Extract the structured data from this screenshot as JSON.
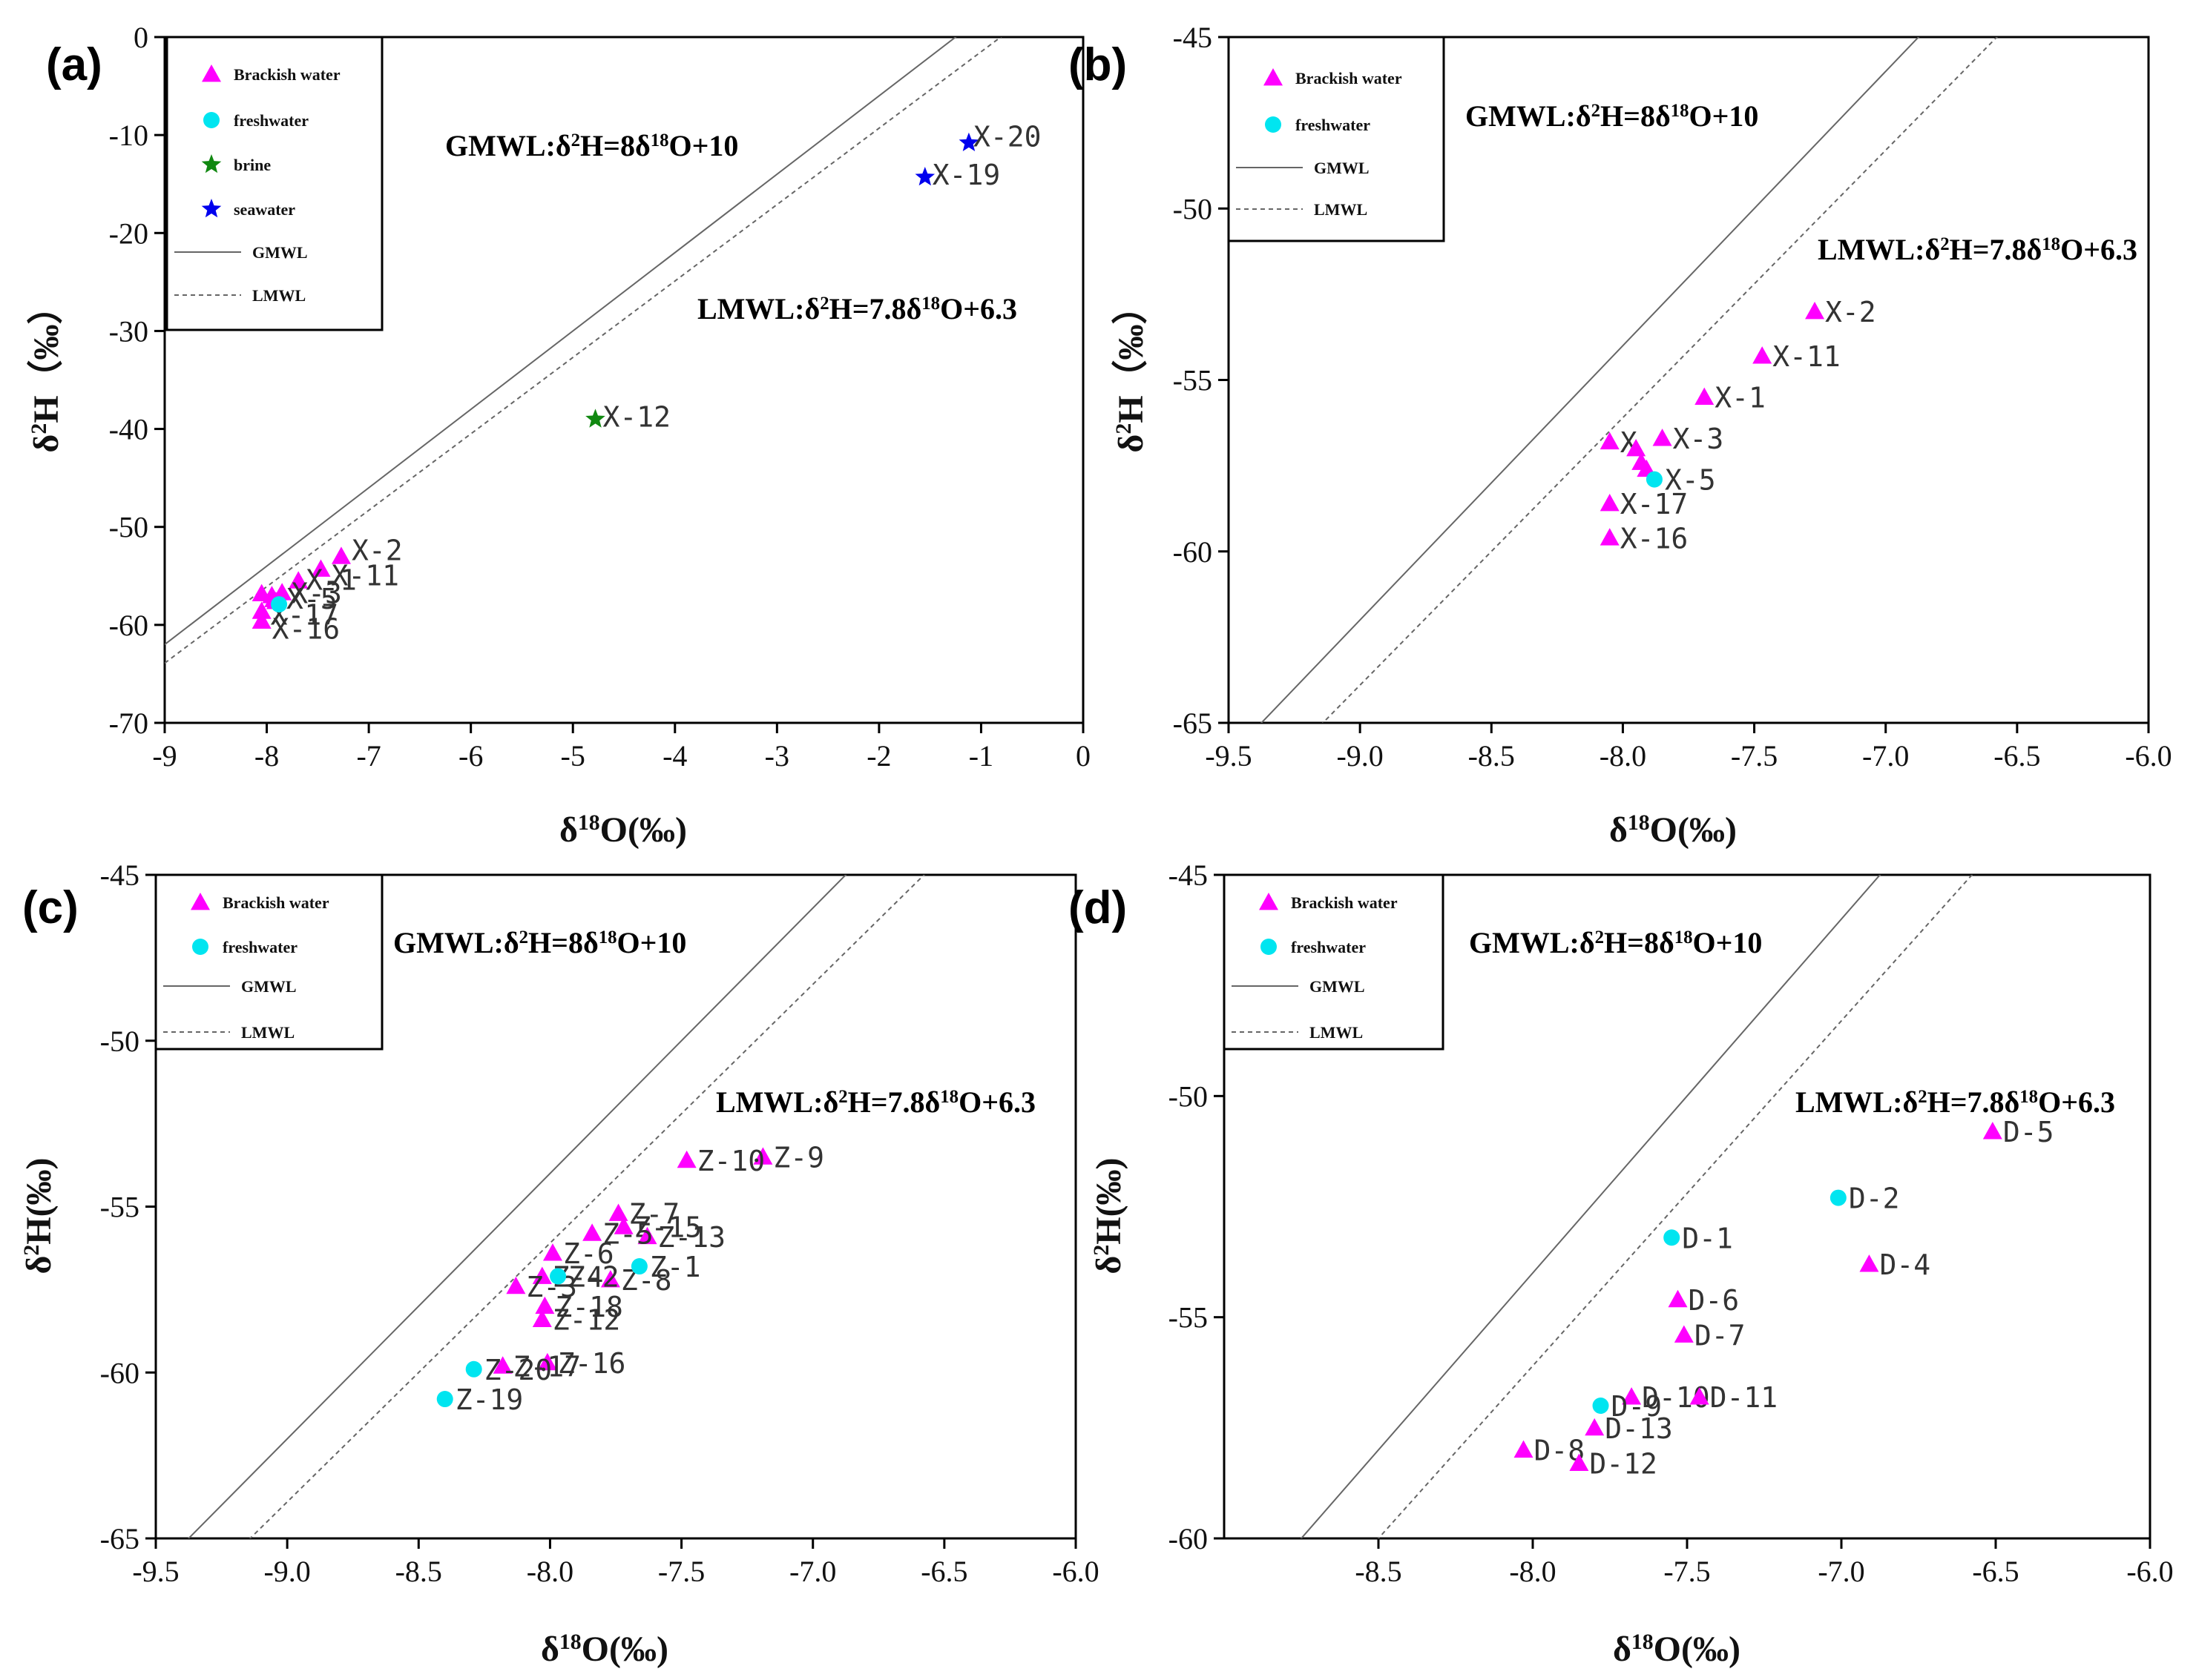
{
  "figure": {
    "colors": {
      "brackish": "#ff00ff",
      "freshwater": "#00e5f0",
      "brine": "#118811",
      "seawater": "#0000ee",
      "line": "#666666",
      "axis": "#000000"
    }
  },
  "chart_data": [
    {
      "panel": "(a)",
      "type": "scatter",
      "xlabel": "δ18O(‰)",
      "ylabel": "δ2H（‰）",
      "xlim": [
        -9,
        0
      ],
      "ylim": [
        -70,
        0
      ],
      "xticks": [
        -9,
        -8,
        -7,
        -6,
        -5,
        -4,
        -3,
        -2,
        -1,
        0
      ],
      "yticks": [
        -70,
        -60,
        -50,
        -40,
        -30,
        -20,
        -10,
        0
      ],
      "legend": [
        "Brackish water",
        "freshwater",
        "brine",
        "seawater",
        "GMWL",
        "LMWL"
      ],
      "annotations": [
        "GMWL:δ2H=8δ18O+10",
        "LMWL:δ2H=7.8δ18O+6.3"
      ],
      "lines": [
        {
          "name": "GMWL",
          "slope": 8,
          "intercept": 10,
          "style": "solid"
        },
        {
          "name": "LMWL",
          "slope": 7.8,
          "intercept": 6.3,
          "style": "dashed"
        }
      ],
      "series": [
        {
          "name": "Brackish water",
          "marker": "triangle",
          "points": [
            {
              "label": "X-2",
              "x": -7.27,
              "y": -53.0
            },
            {
              "label": "X-11",
              "x": -7.47,
              "y": -54.3
            },
            {
              "label": "X-1",
              "x": -7.69,
              "y": -55.5
            },
            {
              "label": "X-3",
              "x": -7.85,
              "y": -56.7
            },
            {
              "label": "",
              "x": -8.05,
              "y": -56.8
            },
            {
              "label": "",
              "x": -7.95,
              "y": -57.0
            },
            {
              "label": "",
              "x": -7.93,
              "y": -57.4
            },
            {
              "label": "",
              "x": -7.91,
              "y": -57.6
            },
            {
              "label": "X-17",
              "x": -8.05,
              "y": -58.6
            },
            {
              "label": "X-16",
              "x": -8.05,
              "y": -59.6
            }
          ]
        },
        {
          "name": "freshwater",
          "marker": "circle",
          "points": [
            {
              "label": "X-5",
              "x": -7.88,
              "y": -57.9
            }
          ]
        },
        {
          "name": "brine",
          "marker": "star",
          "points": [
            {
              "label": "X-12",
              "x": -4.78,
              "y": -39.0
            }
          ]
        },
        {
          "name": "seawater",
          "marker": "star",
          "points": [
            {
              "label": "X-19",
              "x": -1.55,
              "y": -14.3
            },
            {
              "label": "X-20",
              "x": -1.12,
              "y": -10.8
            }
          ]
        }
      ]
    },
    {
      "panel": "(b)",
      "type": "scatter",
      "xlabel": "δ18O(‰)",
      "ylabel": "δ2H（‰）",
      "xlim": [
        -9.5,
        -6.0
      ],
      "ylim": [
        -65,
        -45
      ],
      "xticks": [
        -9.5,
        -9.0,
        -8.5,
        -8.0,
        -7.5,
        -7.0,
        -6.5,
        -6.0
      ],
      "yticks": [
        -65,
        -60,
        -55,
        -50,
        -45
      ],
      "legend": [
        "Brackish water",
        "freshwater",
        "GMWL",
        "LMWL"
      ],
      "annotations": [
        "GMWL:δ2H=8δ18O+10",
        "LMWL:δ2H=7.8δ18O+6.3"
      ],
      "lines": [
        {
          "name": "GMWL",
          "slope": 8,
          "intercept": 10,
          "style": "solid"
        },
        {
          "name": "LMWL",
          "slope": 7.8,
          "intercept": 6.3,
          "style": "dashed"
        }
      ],
      "series": [
        {
          "name": "Brackish water",
          "marker": "triangle",
          "points": [
            {
              "label": "X-2",
              "x": -7.27,
              "y": -53.0
            },
            {
              "label": "X-11",
              "x": -7.47,
              "y": -54.3
            },
            {
              "label": "X-1",
              "x": -7.69,
              "y": -55.5
            },
            {
              "label": "X-3",
              "x": -7.85,
              "y": -56.7
            },
            {
              "label": "X",
              "x": -8.05,
              "y": -56.8
            },
            {
              "label": "",
              "x": -7.95,
              "y": -57.0
            },
            {
              "label": "",
              "x": -7.93,
              "y": -57.4
            },
            {
              "label": "",
              "x": -7.91,
              "y": -57.6
            },
            {
              "label": "X-17",
              "x": -8.05,
              "y": -58.6
            },
            {
              "label": "X-16",
              "x": -8.05,
              "y": -59.6
            }
          ]
        },
        {
          "name": "freshwater",
          "marker": "circle",
          "points": [
            {
              "label": "X-5",
              "x": -7.88,
              "y": -57.9
            }
          ]
        }
      ]
    },
    {
      "panel": "(c)",
      "type": "scatter",
      "xlabel": "δ18O(‰)",
      "ylabel": "δ2H(‰)",
      "xlim": [
        -9.5,
        -6.0
      ],
      "ylim": [
        -65,
        -45
      ],
      "xticks": [
        -9.5,
        -9.0,
        -8.5,
        -8.0,
        -7.5,
        -7.0,
        -6.5,
        -6.0
      ],
      "yticks": [
        -65,
        -60,
        -55,
        -50,
        -45
      ],
      "legend": [
        "Brackish water",
        "freshwater",
        "GMWL",
        "LMWL"
      ],
      "annotations": [
        "GMWL:δ2H=8δ18O+10",
        "LMWL:δ2H=7.8δ18O+6.3"
      ],
      "lines": [
        {
          "name": "GMWL",
          "slope": 8,
          "intercept": 10,
          "style": "solid"
        },
        {
          "name": "LMWL",
          "slope": 7.8,
          "intercept": 6.3,
          "style": "dashed"
        }
      ],
      "series": [
        {
          "name": "Brackish water",
          "marker": "triangle",
          "points": [
            {
              "label": "Z-9",
              "x": -7.19,
              "y": -53.5
            },
            {
              "label": "Z-10",
              "x": -7.48,
              "y": -53.6
            },
            {
              "label": "Z-7",
              "x": -7.74,
              "y": -55.2
            },
            {
              "label": "Z-15",
              "x": -7.72,
              "y": -55.6
            },
            {
              "label": "Z-13",
              "x": -7.63,
              "y": -55.9
            },
            {
              "label": "Z-5",
              "x": -7.84,
              "y": -55.8
            },
            {
              "label": "Z-6",
              "x": -7.99,
              "y": -56.4
            },
            {
              "label": "Z-8",
              "x": -7.77,
              "y": -57.2
            },
            {
              "label": "Z-4",
              "x": -8.03,
              "y": -57.1
            },
            {
              "label": "Z-3",
              "x": -8.13,
              "y": -57.4
            },
            {
              "label": "Z-18",
              "x": -8.02,
              "y": -58.0
            },
            {
              "label": "Z-12",
              "x": -8.03,
              "y": -58.4
            },
            {
              "label": "Z-16",
              "x": -8.01,
              "y": -59.7
            },
            {
              "label": "Z-17",
              "x": -8.18,
              "y": -59.8
            }
          ]
        },
        {
          "name": "freshwater",
          "marker": "circle",
          "points": [
            {
              "label": "Z-1",
              "x": -7.66,
              "y": -56.8
            },
            {
              "label": "Z-2",
              "x": -7.97,
              "y": -57.1
            },
            {
              "label": "Z-20",
              "x": -8.29,
              "y": -59.9
            },
            {
              "label": "Z-19",
              "x": -8.4,
              "y": -60.8
            }
          ]
        }
      ]
    },
    {
      "panel": "(d)",
      "type": "scatter",
      "xlabel": "δ18O(‰)",
      "ylabel": "δ2H(‰)",
      "xlim": [
        -9.0,
        -6.0
      ],
      "ylim": [
        -60,
        -45
      ],
      "xticks": [
        -8.5,
        -8.0,
        -7.5,
        -7.0,
        -6.5,
        -6.0
      ],
      "yticks": [
        -60,
        -55,
        -50,
        -45
      ],
      "legend": [
        "Brackish water",
        "freshwater",
        "GMWL",
        "LMWL"
      ],
      "annotations": [
        "GMWL:δ2H=8δ18O+10",
        "LMWL:δ2H=7.8δ18O+6.3"
      ],
      "lines": [
        {
          "name": "GMWL",
          "slope": 8,
          "intercept": 10,
          "style": "solid"
        },
        {
          "name": "LMWL",
          "slope": 7.8,
          "intercept": 6.3,
          "style": "dashed"
        }
      ],
      "series": [
        {
          "name": "Brackish water",
          "marker": "triangle",
          "points": [
            {
              "label": "D-5",
              "x": -6.51,
              "y": -50.8
            },
            {
              "label": "D-4",
              "x": -6.91,
              "y": -53.8
            },
            {
              "label": "D-6",
              "x": -7.53,
              "y": -54.6
            },
            {
              "label": "D-7",
              "x": -7.51,
              "y": -55.4
            },
            {
              "label": "D-10",
              "x": -7.68,
              "y": -56.8
            },
            {
              "label": "D-11",
              "x": -7.46,
              "y": -56.8
            },
            {
              "label": "D-13",
              "x": -7.8,
              "y": -57.5
            },
            {
              "label": "D-8",
              "x": -8.03,
              "y": -58.0
            },
            {
              "label": "D-12",
              "x": -7.85,
              "y": -58.3
            }
          ]
        },
        {
          "name": "freshwater",
          "marker": "circle",
          "points": [
            {
              "label": "D-2",
              "x": -7.01,
              "y": -52.3
            },
            {
              "label": "D-1",
              "x": -7.55,
              "y": -53.2
            },
            {
              "label": "D-9",
              "x": -7.78,
              "y": -57.0
            }
          ]
        }
      ]
    }
  ]
}
